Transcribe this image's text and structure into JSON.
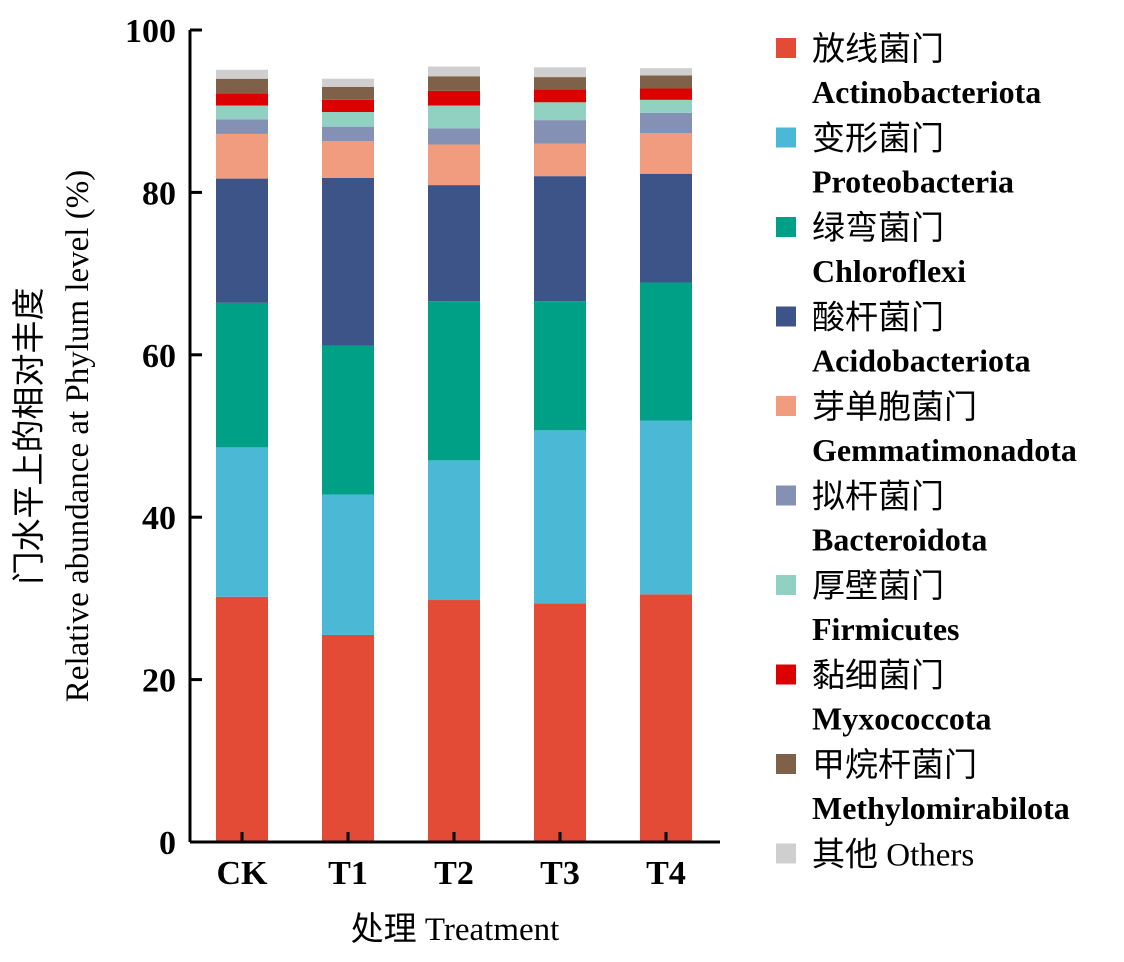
{
  "chart_data": {
    "type": "bar",
    "stacked": true,
    "categories": [
      "CK",
      "T1",
      "T2",
      "T3",
      "T4"
    ],
    "ylim": [
      0,
      100
    ],
    "yticks": [
      0,
      20,
      40,
      60,
      80,
      100
    ],
    "xlabel": "处理 Treatment",
    "ylabel_cn": "门水平上的相对丰度",
    "ylabel_en": "Relative abundance at Phylum level (%)",
    "legend_position": "right",
    "series": [
      {
        "name": "放线菌门",
        "name_en": "Actinobacteriota",
        "color": "#e34b37",
        "values": [
          30.2,
          25.5,
          29.8,
          29.4,
          30.5
        ]
      },
      {
        "name": "变形菌门",
        "name_en": "Proteobacteria",
        "color": "#4bb9d5",
        "values": [
          18.4,
          17.3,
          17.2,
          21.3,
          21.4
        ]
      },
      {
        "name": "绿弯菌门",
        "name_en": "Chloroflexi",
        "color": "#00a086",
        "values": [
          17.8,
          18.3,
          19.6,
          15.9,
          17.0
        ]
      },
      {
        "name": "酸杆菌门",
        "name_en": "Acidobacteriota",
        "color": "#3c5487",
        "values": [
          15.3,
          20.7,
          14.3,
          15.4,
          13.4
        ]
      },
      {
        "name": "芽单胞菌门",
        "name_en": "Gemmatimonadota",
        "color": "#f19b7f",
        "values": [
          5.5,
          4.5,
          5.0,
          4.0,
          5.0
        ]
      },
      {
        "name": "拟杆菌门",
        "name_en": "Bacteroidota",
        "color": "#8491b4",
        "values": [
          1.8,
          1.8,
          2.0,
          2.9,
          2.5
        ]
      },
      {
        "name": "厚壁菌门",
        "name_en": "Firmicutes",
        "color": "#91d1c2",
        "values": [
          1.7,
          1.8,
          2.8,
          2.2,
          1.6
        ]
      },
      {
        "name": "黏细菌门",
        "name_en": "Myxococcota",
        "color": "#dc0000",
        "values": [
          1.5,
          1.5,
          1.8,
          1.6,
          1.4
        ]
      },
      {
        "name": "甲烷杆菌门",
        "name_en": "Methylomirabilota",
        "color": "#7e6148",
        "values": [
          1.8,
          1.6,
          1.8,
          1.5,
          1.6
        ]
      },
      {
        "name": "其他 Others",
        "name_en": "",
        "color": "#cfcfcf",
        "values": [
          1.1,
          1.0,
          1.2,
          1.2,
          0.9
        ]
      }
    ]
  }
}
